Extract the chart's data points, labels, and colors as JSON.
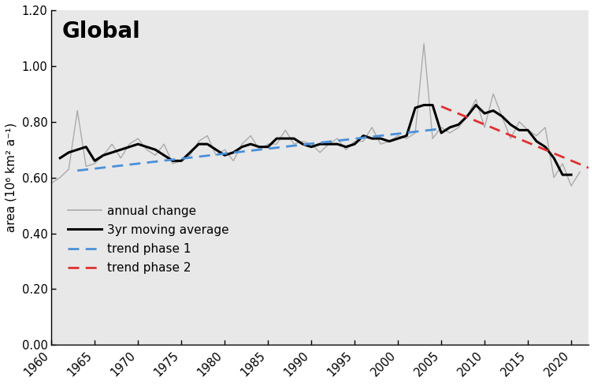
{
  "title": "Global",
  "ylabel": "area (10⁶ km² a⁻¹)",
  "xlim": [
    1960,
    2022
  ],
  "ylim": [
    0.0,
    1.2
  ],
  "yticks": [
    0.0,
    0.2,
    0.4,
    0.6,
    0.8,
    1.0,
    1.2
  ],
  "xticks": [
    1960,
    1965,
    1970,
    1975,
    1980,
    1985,
    1990,
    1995,
    2000,
    2005,
    2010,
    2015,
    2020
  ],
  "background_color": "#e8e8e8",
  "annual_years": [
    1960,
    1961,
    1962,
    1963,
    1964,
    1965,
    1966,
    1967,
    1968,
    1969,
    1970,
    1971,
    1972,
    1973,
    1974,
    1975,
    1976,
    1977,
    1978,
    1979,
    1980,
    1981,
    1982,
    1983,
    1984,
    1985,
    1986,
    1987,
    1988,
    1989,
    1990,
    1991,
    1992,
    1993,
    1994,
    1995,
    1996,
    1997,
    1998,
    1999,
    2000,
    2001,
    2002,
    2003,
    2004,
    2005,
    2006,
    2007,
    2008,
    2009,
    2010,
    2011,
    2012,
    2013,
    2014,
    2015,
    2016,
    2017,
    2018,
    2019,
    2020,
    2021
  ],
  "annual_values": [
    0.58,
    0.6,
    0.63,
    0.84,
    0.64,
    0.65,
    0.68,
    0.72,
    0.67,
    0.72,
    0.74,
    0.7,
    0.68,
    0.72,
    0.65,
    0.66,
    0.68,
    0.73,
    0.75,
    0.68,
    0.7,
    0.66,
    0.72,
    0.75,
    0.7,
    0.72,
    0.72,
    0.77,
    0.72,
    0.73,
    0.72,
    0.69,
    0.72,
    0.74,
    0.7,
    0.73,
    0.73,
    0.78,
    0.72,
    0.73,
    0.75,
    0.74,
    0.76,
    1.08,
    0.74,
    0.78,
    0.76,
    0.78,
    0.82,
    0.88,
    0.78,
    0.9,
    0.82,
    0.74,
    0.8,
    0.77,
    0.75,
    0.78,
    0.6,
    0.65,
    0.57,
    0.62
  ],
  "moving_avg_years": [
    1961,
    1962,
    1963,
    1964,
    1965,
    1966,
    1967,
    1968,
    1969,
    1970,
    1971,
    1972,
    1973,
    1974,
    1975,
    1976,
    1977,
    1978,
    1979,
    1980,
    1981,
    1982,
    1983,
    1984,
    1985,
    1986,
    1987,
    1988,
    1989,
    1990,
    1991,
    1992,
    1993,
    1994,
    1995,
    1996,
    1997,
    1998,
    1999,
    2000,
    2001,
    2002,
    2003,
    2004,
    2005,
    2006,
    2007,
    2008,
    2009,
    2010,
    2011,
    2012,
    2013,
    2014,
    2015,
    2016,
    2017,
    2018,
    2019,
    2020
  ],
  "moving_avg_values": [
    0.67,
    0.69,
    0.7,
    0.71,
    0.66,
    0.68,
    0.69,
    0.7,
    0.71,
    0.72,
    0.71,
    0.7,
    0.68,
    0.66,
    0.66,
    0.69,
    0.72,
    0.72,
    0.7,
    0.68,
    0.69,
    0.71,
    0.72,
    0.71,
    0.71,
    0.74,
    0.74,
    0.74,
    0.72,
    0.71,
    0.72,
    0.72,
    0.72,
    0.71,
    0.72,
    0.75,
    0.74,
    0.74,
    0.73,
    0.74,
    0.75,
    0.85,
    0.86,
    0.86,
    0.76,
    0.78,
    0.79,
    0.82,
    0.86,
    0.83,
    0.84,
    0.82,
    0.79,
    0.77,
    0.77,
    0.73,
    0.71,
    0.67,
    0.61,
    0.61
  ],
  "trend1_x": [
    1963,
    2005
  ],
  "trend1_y": [
    0.625,
    0.775
  ],
  "trend2_x": [
    2005,
    2022
  ],
  "trend2_y": [
    0.855,
    0.635
  ],
  "annual_color": "#aaaaaa",
  "moving_avg_color": "#000000",
  "trend1_color": "#4a90d9",
  "trend2_color": "#e03030",
  "legend_fontsize": 11,
  "title_fontsize": 20,
  "axis_fontsize": 11,
  "tick_fontsize": 10.5
}
